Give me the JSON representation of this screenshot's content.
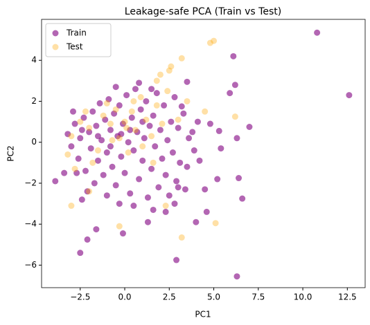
{
  "chart_data": {
    "type": "scatter",
    "title": "Leakage-safe PCA (Train vs Test)",
    "xlabel": "PC1",
    "ylabel": "PC2",
    "xlim": [
      -4.67,
      13.5
    ],
    "ylim": [
      -7.1,
      6.0
    ],
    "xticks": [
      {
        "value": -2.5,
        "label": "−2.5"
      },
      {
        "value": 0,
        "label": "0.0"
      },
      2.5,
      {
        "value": 5,
        "label": "5.0"
      },
      {
        "value": 7.5,
        "label": "7.5"
      },
      {
        "value": 10,
        "label": "10.0"
      },
      12.5
    ],
    "yticks": [
      {
        "value": -6,
        "label": "−6"
      },
      {
        "value": -4,
        "label": "−4"
      },
      {
        "value": -2,
        "label": "−2"
      },
      0,
      2,
      4
    ],
    "legend": "upper left",
    "series": [
      {
        "name": "Train",
        "color": "#800080",
        "x": [
          10.8,
          12.6,
          6.1,
          6.2,
          5.9,
          6.3,
          2.9,
          -2.5,
          -2.1,
          -1.6,
          -0.1,
          1.3,
          4.0,
          4.6,
          6.6,
          6.4,
          6.3,
          7.0,
          5.3,
          5.4,
          3.5,
          3.2,
          -3.9,
          -2.4,
          2.3,
          3.0,
          3.5,
          4.2,
          3.8,
          -3.2,
          -3.0,
          -2.8,
          -2.6,
          -2.5,
          -2.3,
          -2.2,
          -2.0,
          -1.9,
          -1.8,
          -1.7,
          -1.6,
          -1.5,
          -1.4,
          -1.3,
          -1.2,
          -1.1,
          -1.0,
          -0.9,
          -0.8,
          -0.7,
          -0.6,
          -0.5,
          -0.4,
          -0.3,
          -0.2,
          -0.1,
          0.0,
          0.1,
          0.2,
          0.3,
          0.4,
          0.5,
          0.6,
          0.7,
          0.8,
          0.9,
          1.0,
          1.1,
          1.2,
          1.3,
          1.4,
          1.5,
          1.6,
          1.7,
          1.8,
          1.9,
          2.0,
          2.1,
          2.2,
          2.3,
          2.4,
          2.5,
          2.6,
          2.7,
          2.8,
          2.9,
          3.0,
          3.1,
          3.3,
          3.4,
          3.6,
          3.9,
          4.1,
          -2.7,
          -2.1,
          -1.0,
          -0.3,
          0.5,
          1.6,
          2.8,
          -3.4,
          -2.9,
          -0.5,
          0.8,
          1.5,
          4.5,
          5.2,
          4.8,
          -1.5,
          -0.8,
          0.3,
          1.0,
          -2.4,
          -0.2
        ],
        "values": [
          5.35,
          2.3,
          4.2,
          2.8,
          2.4,
          -6.55,
          -5.75,
          -5.4,
          -4.75,
          -4.25,
          -4.45,
          -3.9,
          -3.9,
          -3.4,
          -2.75,
          -1.75,
          0.2,
          0.75,
          0.55,
          -0.3,
          2.95,
          1.75,
          -1.9,
          -2.8,
          -3.4,
          -2.2,
          -1.2,
          -0.9,
          0.5,
          0.4,
          -0.2,
          0.9,
          -0.8,
          0.2,
          1.2,
          -1.4,
          0.5,
          -0.3,
          1.5,
          -2.0,
          0.8,
          -0.9,
          1.9,
          0.1,
          -1.6,
          1.1,
          -0.5,
          2.1,
          0.6,
          -1.2,
          1.4,
          -2.1,
          0.3,
          1.8,
          -0.7,
          0.9,
          -1.5,
          2.3,
          0.0,
          -2.5,
          1.2,
          -0.4,
          2.6,
          0.5,
          -1.8,
          1.6,
          -0.9,
          0.2,
          2.0,
          -2.7,
          0.8,
          -1.3,
          1.3,
          -0.2,
          2.4,
          -2.2,
          0.6,
          -0.8,
          1.8,
          -1.6,
          0.1,
          -2.6,
          1.0,
          -0.5,
          2.2,
          -1.9,
          0.7,
          -1.0,
          1.4,
          -2.3,
          0.2,
          -0.4,
          1.0,
          -1.5,
          -2.4,
          -2.6,
          -3.0,
          -3.1,
          -3.3,
          -3.0,
          -1.5,
          1.5,
          2.7,
          2.9,
          2.6,
          -2.3,
          -1.8,
          0.9,
          0.3,
          -0.2,
          0.6,
          1.0,
          0.6,
          0.4
        ]
      },
      {
        "name": "Test",
        "color": "#ffa500",
        "x": [
          5.0,
          4.8,
          3.2,
          2.6,
          2.5,
          2.0,
          1.8,
          6.2,
          5.1,
          3.2,
          2.3,
          -0.3,
          -3.0,
          -2.0,
          3.0,
          4.5,
          3.5,
          -3.0,
          -2.5,
          -2.0,
          -1.5,
          -1.2,
          -0.8,
          -0.5,
          -0.3,
          0.0,
          0.2,
          0.4,
          0.6,
          0.9,
          1.2,
          1.5,
          1.8,
          2.1,
          -1.8,
          -2.8,
          0.1,
          -0.7,
          1.0,
          -2.2,
          2.4,
          0.5,
          -1.0,
          -3.2,
          1.6
        ],
        "values": [
          4.95,
          4.85,
          4.1,
          3.7,
          3.5,
          3.3,
          3.0,
          1.25,
          -3.95,
          -4.65,
          -3.1,
          -4.1,
          -3.1,
          -2.4,
          1.1,
          1.5,
          2.0,
          0.3,
          1.0,
          0.7,
          -0.4,
          1.3,
          0.9,
          1.6,
          0.2,
          1.0,
          -0.5,
          1.5,
          0.6,
          2.2,
          1.1,
          0.3,
          1.8,
          0.9,
          -1.0,
          -1.3,
          0.7,
          0.1,
          -0.2,
          1.5,
          2.5,
          2.0,
          1.9,
          -0.6,
          -1.0
        ]
      }
    ]
  }
}
